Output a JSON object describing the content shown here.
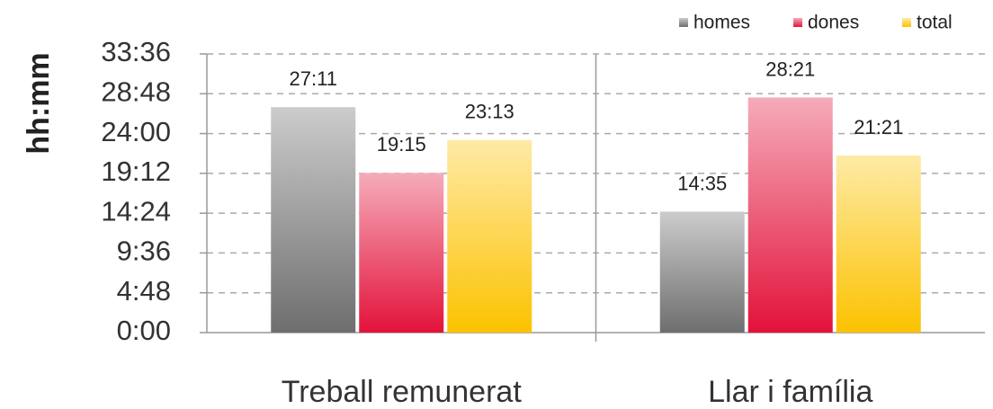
{
  "chart_data": {
    "type": "bar",
    "y_label": "hh:mm",
    "categories": [
      "Treball remunerat",
      "Llar i família"
    ],
    "series": [
      {
        "name": "homes",
        "color": "#6e6e6e",
        "values": [
          27.1833,
          14.5833
        ],
        "value_labels": [
          "27:11",
          "14:35"
        ]
      },
      {
        "name": "dones",
        "color": "#e3123a",
        "values": [
          19.25,
          28.35
        ],
        "value_labels": [
          "19:15",
          "28:21"
        ]
      },
      {
        "name": "total",
        "color": "#fcc200",
        "values": [
          23.2167,
          21.35
        ],
        "value_labels": [
          "23:13",
          "21:21"
        ]
      }
    ],
    "ylim": [
      0,
      33.6
    ],
    "yticks": [
      {
        "value": 0,
        "label": "0:00"
      },
      {
        "value": 4.8,
        "label": "4:48"
      },
      {
        "value": 9.6,
        "label": "9:36"
      },
      {
        "value": 14.4,
        "label": "14:24"
      },
      {
        "value": 19.2,
        "label": "19:12"
      },
      {
        "value": 24,
        "label": "24:00"
      },
      {
        "value": 28.8,
        "label": "28:48"
      },
      {
        "value": 33.6,
        "label": "33:36"
      }
    ],
    "grid": true,
    "legend": "top-right"
  }
}
